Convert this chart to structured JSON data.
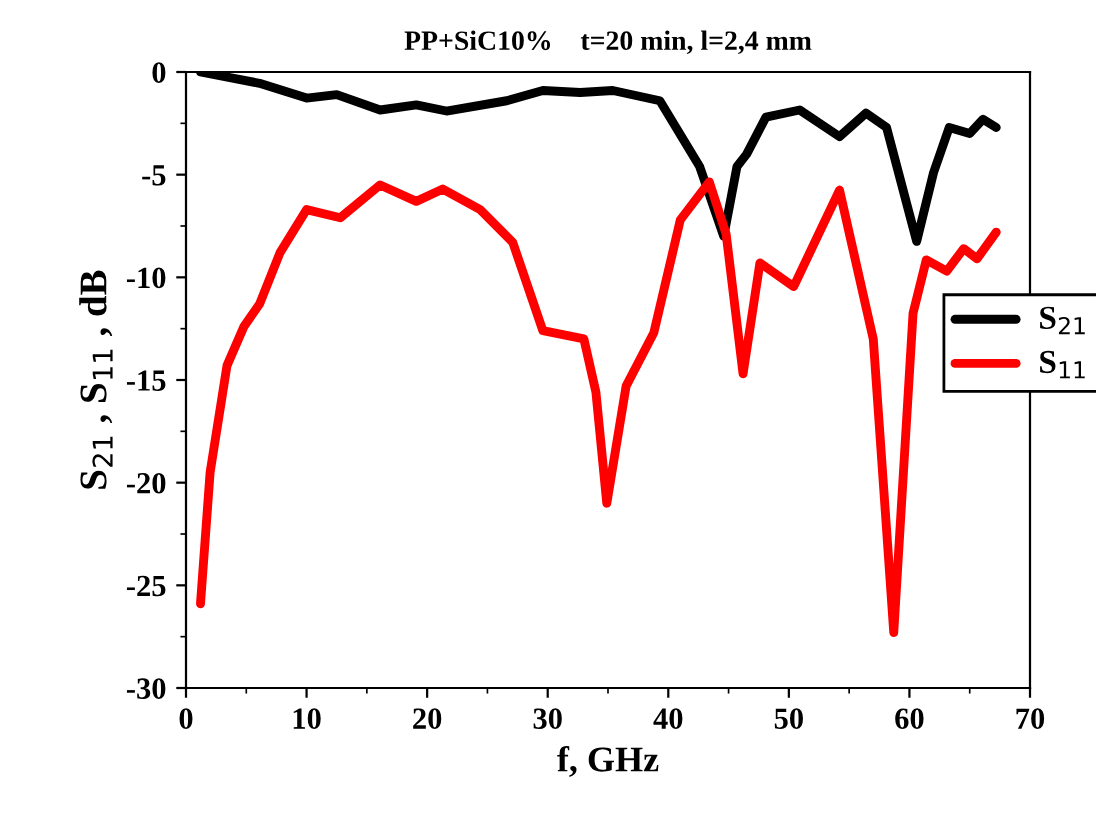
{
  "chart_data": {
    "type": "line",
    "title": "PP+SiC10%    t=20 min, l=2,4 mm",
    "xlabel": "f, GHz",
    "ylabel": "S$_{21}$ , S$_{11}$ , dB",
    "xlim": [
      0,
      70
    ],
    "xticks": [
      0,
      10,
      20,
      30,
      40,
      50,
      60,
      70
    ],
    "ylim": [
      -30,
      0
    ],
    "yticks": [
      -30,
      -25,
      -20,
      -15,
      -10,
      -5,
      0
    ],
    "grid": false,
    "legend": "right",
    "marker": "none",
    "line_style": "solid",
    "series": [
      {
        "name": "S$_{21}$",
        "color": "#000000",
        "x": [
          1.2,
          6.1,
          10,
          12.5,
          16.1,
          19.1,
          21.6,
          26.6,
          29.6,
          32.7,
          35.4,
          39.3,
          42.6,
          44.6,
          45.7,
          46.5,
          48.1,
          50.9,
          54.2,
          56.4,
          58.1,
          60.6,
          62,
          63.3,
          65,
          66.1,
          67.2
        ],
        "values": [
          0.0,
          -0.55,
          -1.27,
          -1.1,
          -1.85,
          -1.6,
          -1.9,
          -1.4,
          -0.9,
          -1.0,
          -0.9,
          -1.4,
          -4.6,
          -8.0,
          -4.6,
          -4.0,
          -2.2,
          -1.85,
          -3.15,
          -2.0,
          -2.7,
          -8.25,
          -4.9,
          -2.7,
          -3.0,
          -2.3,
          -2.7
        ]
      },
      {
        "name": "S$_{11}$",
        "color": "#ff0000",
        "x": [
          1.2,
          2,
          3.4,
          4.8,
          6.1,
          7.8,
          10,
          12.8,
          16.1,
          19.1,
          21.3,
          24.4,
          27.1,
          29.6,
          33,
          34,
          34.9,
          36.5,
          38.8,
          41,
          43.4,
          44.8,
          46.2,
          47.6,
          50.4,
          54.2,
          57,
          58.7,
          60.3,
          61.4,
          63.1,
          64.5,
          65.6,
          67.2
        ],
        "values": [
          -25.9,
          -19.5,
          -14.3,
          -12.4,
          -11.3,
          -8.8,
          -6.7,
          -7.1,
          -5.5,
          -6.3,
          -5.7,
          -6.7,
          -8.3,
          -12.6,
          -13.0,
          -15.6,
          -21.0,
          -15.3,
          -12.7,
          -7.2,
          -5.35,
          -7.9,
          -14.7,
          -9.3,
          -10.45,
          -5.75,
          -13.0,
          -27.3,
          -11.75,
          -9.15,
          -9.7,
          -8.6,
          -9.1,
          -7.8
        ]
      }
    ]
  }
}
